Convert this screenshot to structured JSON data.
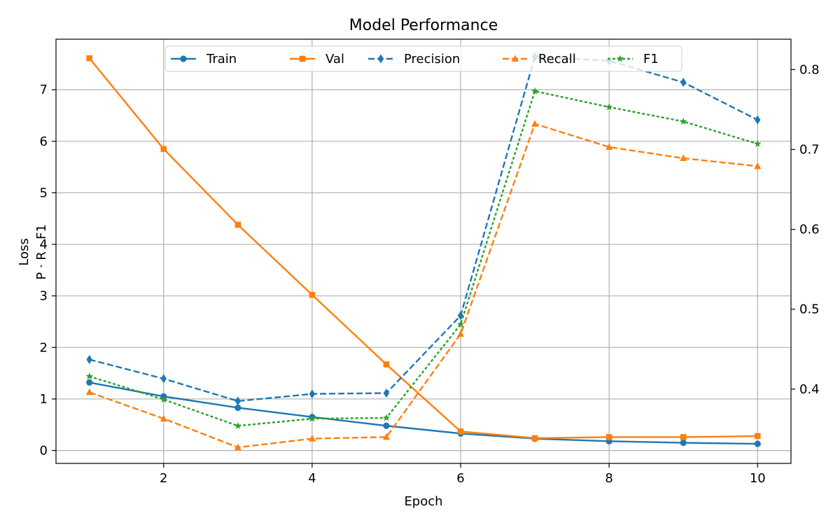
{
  "chart_data": {
    "type": "line",
    "title": "Model Performance",
    "xlabel": "Epoch",
    "ylabel_left": "Loss",
    "ylabel_right": "P · R · F1",
    "x": [
      1,
      2,
      3,
      4,
      5,
      6,
      7,
      8,
      9,
      10
    ],
    "xlim": [
      0.55,
      10.45
    ],
    "xticks": [
      2,
      4,
      6,
      8,
      10
    ],
    "ylim_left": [
      -0.25,
      7.98
    ],
    "yticks_left": [
      0,
      1,
      2,
      3,
      4,
      5,
      6,
      7
    ],
    "ylim_right": [
      0.307,
      0.838
    ],
    "yticks_right": [
      0.4,
      0.5,
      0.6,
      0.7,
      0.8
    ],
    "grid": true,
    "legend": {
      "placement": "upper-center",
      "columns": 5
    },
    "series": [
      {
        "name": "Train",
        "axis": "left",
        "color": "#1f77b4",
        "dash": "solid",
        "marker": "circle",
        "values": [
          1.32,
          1.05,
          0.83,
          0.65,
          0.48,
          0.33,
          0.23,
          0.18,
          0.15,
          0.13
        ]
      },
      {
        "name": "Val",
        "axis": "left",
        "color": "#ff7f0e",
        "dash": "solid",
        "marker": "square",
        "values": [
          7.61,
          5.85,
          4.38,
          3.02,
          1.67,
          0.37,
          0.24,
          0.26,
          0.26,
          0.28
        ]
      },
      {
        "name": "Precision",
        "axis": "right",
        "color": "#1f77b4",
        "dash": "dashed",
        "marker": "diamond",
        "values": [
          0.437,
          0.413,
          0.385,
          0.394,
          0.395,
          0.492,
          0.816,
          0.811,
          0.784,
          0.737
        ]
      },
      {
        "name": "Recall",
        "axis": "right",
        "color": "#ff7f0e",
        "dash": "dashed",
        "marker": "triangle",
        "values": [
          0.396,
          0.363,
          0.327,
          0.338,
          0.34,
          0.469,
          0.732,
          0.703,
          0.689,
          0.679
        ]
      },
      {
        "name": "F1",
        "axis": "right",
        "color": "#2ca02c",
        "dash": "dotted",
        "marker": "star",
        "values": [
          0.416,
          0.387,
          0.354,
          0.363,
          0.364,
          0.481,
          0.773,
          0.753,
          0.735,
          0.707
        ]
      }
    ]
  }
}
